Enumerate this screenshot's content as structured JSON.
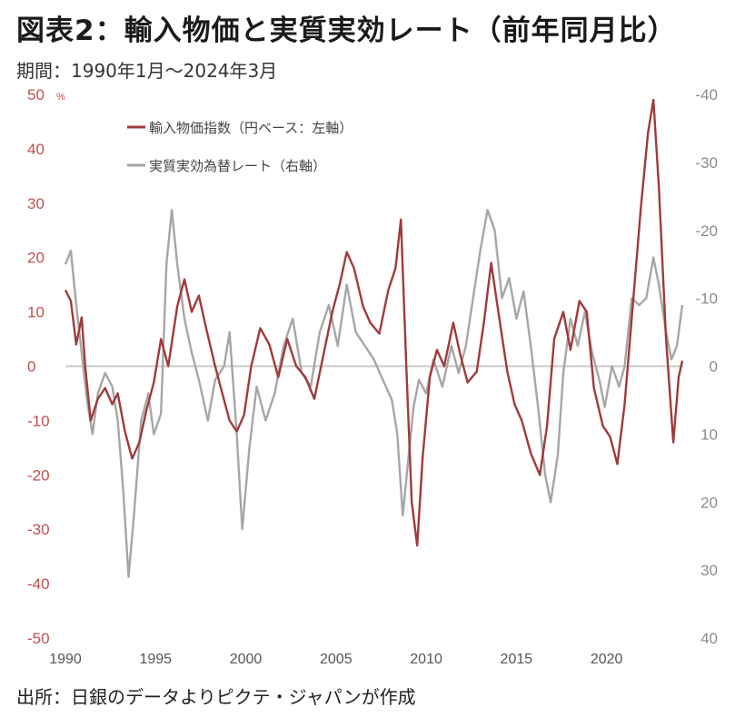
{
  "header": {
    "title": "図表2：輸入物価と実質実効レート（前年同月比）",
    "subtitle": "期間：1990年1月～2024年3月"
  },
  "footer": {
    "source": "出所：日銀のデータよりピクテ・ジャパンが作成"
  },
  "colors": {
    "import": "#a03a3c",
    "reer": "#a6a6a6",
    "zero": "#c8c8c8"
  },
  "chart_data": {
    "type": "line",
    "left_axis": {
      "ticks": [
        "50",
        "40",
        "30",
        "20",
        "10",
        "0",
        "-10",
        "-20",
        "-30",
        "-40",
        "-50"
      ],
      "unit": "%",
      "ylim": [
        -50,
        50
      ]
    },
    "right_axis": {
      "ticks": [
        "-40",
        "-30",
        "-20",
        "-10",
        "0",
        "10",
        "20",
        "30",
        "40"
      ],
      "ylim": [
        -40,
        40
      ],
      "inverted": true
    },
    "x_ticks": [
      "1990",
      "1995",
      "2000",
      "2005",
      "2010",
      "2015",
      "2020"
    ],
    "xlim": [
      1990,
      2024.25
    ],
    "legend": {
      "placement": "top-left"
    },
    "series": [
      {
        "name": "輸入物価指数（円ベース：左軸）",
        "axis": "left",
        "points": [
          [
            1990.0,
            14
          ],
          [
            1990.3,
            12
          ],
          [
            1990.6,
            4
          ],
          [
            1990.9,
            9
          ],
          [
            1991.1,
            0
          ],
          [
            1991.4,
            -10
          ],
          [
            1991.8,
            -6
          ],
          [
            1992.2,
            -4
          ],
          [
            1992.6,
            -7
          ],
          [
            1992.9,
            -5
          ],
          [
            1993.3,
            -12
          ],
          [
            1993.7,
            -17
          ],
          [
            1994.1,
            -14
          ],
          [
            1994.5,
            -8
          ],
          [
            1994.9,
            -3
          ],
          [
            1995.3,
            5
          ],
          [
            1995.7,
            0
          ],
          [
            1996.2,
            11
          ],
          [
            1996.6,
            16
          ],
          [
            1997.0,
            10
          ],
          [
            1997.4,
            13
          ],
          [
            1997.8,
            7
          ],
          [
            1998.3,
            0
          ],
          [
            1998.7,
            -5
          ],
          [
            1999.1,
            -10
          ],
          [
            1999.5,
            -12
          ],
          [
            1999.9,
            -9
          ],
          [
            2000.3,
            0
          ],
          [
            2000.8,
            7
          ],
          [
            2001.3,
            4
          ],
          [
            2001.8,
            -2
          ],
          [
            2002.3,
            5
          ],
          [
            2002.8,
            0
          ],
          [
            2003.3,
            -2
          ],
          [
            2003.8,
            -6
          ],
          [
            2004.3,
            2
          ],
          [
            2004.8,
            10
          ],
          [
            2005.2,
            15
          ],
          [
            2005.6,
            21
          ],
          [
            2006.0,
            18
          ],
          [
            2006.5,
            11
          ],
          [
            2006.9,
            8
          ],
          [
            2007.4,
            6
          ],
          [
            2007.9,
            14
          ],
          [
            2008.3,
            18
          ],
          [
            2008.6,
            27
          ],
          [
            2008.9,
            0
          ],
          [
            2009.2,
            -25
          ],
          [
            2009.5,
            -33
          ],
          [
            2009.8,
            -17
          ],
          [
            2010.2,
            -2
          ],
          [
            2010.6,
            3
          ],
          [
            2011.0,
            0
          ],
          [
            2011.5,
            8
          ],
          [
            2011.9,
            2
          ],
          [
            2012.3,
            -3
          ],
          [
            2012.8,
            -1
          ],
          [
            2013.2,
            8
          ],
          [
            2013.6,
            19
          ],
          [
            2014.0,
            10
          ],
          [
            2014.5,
            -1
          ],
          [
            2014.9,
            -7
          ],
          [
            2015.3,
            -10
          ],
          [
            2015.8,
            -16
          ],
          [
            2016.3,
            -20
          ],
          [
            2016.7,
            -11
          ],
          [
            2017.1,
            5
          ],
          [
            2017.6,
            10
          ],
          [
            2018.0,
            3
          ],
          [
            2018.5,
            12
          ],
          [
            2018.9,
            10
          ],
          [
            2019.3,
            -4
          ],
          [
            2019.8,
            -11
          ],
          [
            2020.2,
            -13
          ],
          [
            2020.6,
            -18
          ],
          [
            2021.0,
            -7
          ],
          [
            2021.5,
            13
          ],
          [
            2021.9,
            29
          ],
          [
            2022.3,
            43
          ],
          [
            2022.6,
            49
          ],
          [
            2022.9,
            33
          ],
          [
            2023.3,
            5
          ],
          [
            2023.7,
            -14
          ],
          [
            2024.0,
            -2
          ],
          [
            2024.2,
            1
          ]
        ]
      },
      {
        "name": "実質実効為替レート（右軸）",
        "axis": "right",
        "points": [
          [
            1990.0,
            -15
          ],
          [
            1990.3,
            -17
          ],
          [
            1990.6,
            -9
          ],
          [
            1990.9,
            -2
          ],
          [
            1991.2,
            5
          ],
          [
            1991.5,
            10
          ],
          [
            1991.8,
            4
          ],
          [
            1992.2,
            1
          ],
          [
            1992.6,
            3
          ],
          [
            1992.9,
            8
          ],
          [
            1993.2,
            18
          ],
          [
            1993.5,
            31
          ],
          [
            1993.8,
            22
          ],
          [
            1994.2,
            8
          ],
          [
            1994.6,
            4
          ],
          [
            1994.9,
            10
          ],
          [
            1995.3,
            7
          ],
          [
            1995.6,
            -15
          ],
          [
            1995.9,
            -23
          ],
          [
            1996.2,
            -15
          ],
          [
            1996.6,
            -7
          ],
          [
            1997.0,
            -2
          ],
          [
            1997.4,
            2
          ],
          [
            1997.9,
            8
          ],
          [
            1998.3,
            2
          ],
          [
            1998.8,
            0
          ],
          [
            1999.1,
            -5
          ],
          [
            1999.5,
            10
          ],
          [
            1999.8,
            24
          ],
          [
            2000.2,
            12
          ],
          [
            2000.6,
            3
          ],
          [
            2001.1,
            8
          ],
          [
            2001.6,
            4
          ],
          [
            2002.1,
            -3
          ],
          [
            2002.6,
            -7
          ],
          [
            2003.1,
            1
          ],
          [
            2003.6,
            3
          ],
          [
            2004.1,
            -5
          ],
          [
            2004.6,
            -9
          ],
          [
            2005.1,
            -3
          ],
          [
            2005.6,
            -12
          ],
          [
            2006.1,
            -5
          ],
          [
            2006.6,
            -3
          ],
          [
            2007.1,
            -1
          ],
          [
            2007.6,
            2
          ],
          [
            2008.1,
            5
          ],
          [
            2008.4,
            10
          ],
          [
            2008.7,
            22
          ],
          [
            2009.0,
            14
          ],
          [
            2009.3,
            6
          ],
          [
            2009.6,
            2
          ],
          [
            2010.0,
            4
          ],
          [
            2010.4,
            -1
          ],
          [
            2010.9,
            3
          ],
          [
            2011.4,
            -3
          ],
          [
            2011.8,
            1
          ],
          [
            2012.2,
            -3
          ],
          [
            2012.6,
            -10
          ],
          [
            2013.0,
            -17
          ],
          [
            2013.4,
            -23
          ],
          [
            2013.8,
            -20
          ],
          [
            2014.2,
            -10
          ],
          [
            2014.6,
            -13
          ],
          [
            2015.0,
            -7
          ],
          [
            2015.4,
            -11
          ],
          [
            2015.8,
            -3
          ],
          [
            2016.2,
            6
          ],
          [
            2016.6,
            16
          ],
          [
            2016.9,
            20
          ],
          [
            2017.3,
            13
          ],
          [
            2017.6,
            1
          ],
          [
            2018.0,
            -7
          ],
          [
            2018.4,
            -3
          ],
          [
            2018.8,
            -8
          ],
          [
            2019.2,
            -2
          ],
          [
            2019.6,
            2
          ],
          [
            2019.9,
            6
          ],
          [
            2020.3,
            0
          ],
          [
            2020.7,
            3
          ],
          [
            2021.0,
            0
          ],
          [
            2021.4,
            -10
          ],
          [
            2021.8,
            -9
          ],
          [
            2022.2,
            -10
          ],
          [
            2022.6,
            -16
          ],
          [
            2022.9,
            -12
          ],
          [
            2023.3,
            -5
          ],
          [
            2023.6,
            -1
          ],
          [
            2023.9,
            -3
          ],
          [
            2024.2,
            -9
          ]
        ]
      }
    ]
  }
}
